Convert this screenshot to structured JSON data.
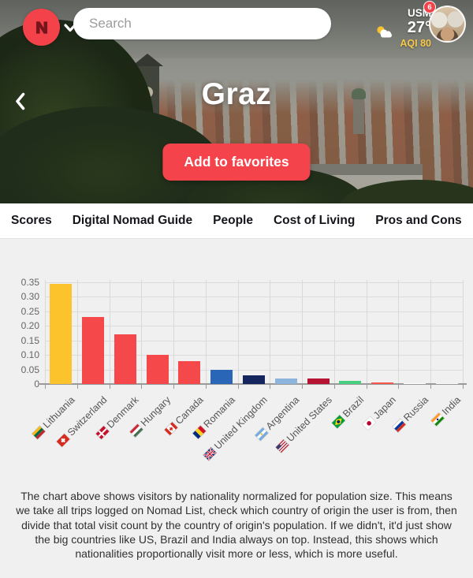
{
  "header": {
    "search_placeholder": "Search",
    "user_label": "USM",
    "notification_count": "6",
    "temperature": "27°",
    "aqi_label": "AQI",
    "aqi_value": "80",
    "colors": {
      "brand_red": "#f3424a",
      "aqi_yellow": "#f7c94b"
    }
  },
  "hero": {
    "title": "Graz",
    "favorite_button_label": "Add to favorites"
  },
  "tabs": [
    "Scores",
    "Digital Nomad Guide",
    "People",
    "Cost of Living",
    "Pros and Cons"
  ],
  "chart_data": {
    "type": "bar",
    "categories": [
      "Lithuania",
      "Switzerland",
      "Denmark",
      "Hungary",
      "Canada",
      "Romania",
      "United Kingdom",
      "Argentina",
      "United States",
      "Brazil",
      "Japan",
      "Russia",
      "India"
    ],
    "values": [
      0.345,
      0.23,
      0.17,
      0.1,
      0.08,
      0.048,
      0.03,
      0.02,
      0.018,
      0.012,
      0.005,
      0.001,
      0.001
    ],
    "bar_colors": [
      "#fcc32c",
      "#f4484b",
      "#f4484b",
      "#f4484b",
      "#f4484b",
      "#2a66b8",
      "#14245c",
      "#8cb4dc",
      "#b51331",
      "#45cf7f",
      "#f4574c",
      "#ffffff",
      "#fafafa"
    ],
    "flags": [
      {
        "type": "h",
        "colors": [
          "#FDB913",
          "#006A44",
          "#C1272D"
        ]
      },
      {
        "type": "ch"
      },
      {
        "type": "dk"
      },
      {
        "type": "h",
        "colors": [
          "#CE2939",
          "#FFFFFF",
          "#477050"
        ]
      },
      {
        "type": "ca"
      },
      {
        "type": "v",
        "colors": [
          "#002B7F",
          "#FCD116",
          "#CE1126"
        ]
      },
      {
        "type": "uk"
      },
      {
        "type": "h",
        "colors": [
          "#74ACDF",
          "#FFFFFF",
          "#74ACDF"
        ],
        "dot": "#F6B40E"
      },
      {
        "type": "us"
      },
      {
        "type": "br"
      },
      {
        "type": "jp"
      },
      {
        "type": "h",
        "colors": [
          "#FFFFFF",
          "#0039A6",
          "#D52B1E"
        ]
      },
      {
        "type": "h",
        "colors": [
          "#FF9933",
          "#FFFFFF",
          "#138808"
        ],
        "dot": "#000088"
      }
    ],
    "title": "",
    "xlabel": "",
    "ylabel": "",
    "ylim": [
      0,
      0.35
    ],
    "ytick_labels": [
      "0",
      "0.05",
      "0.10",
      "0.15",
      "0.20",
      "0.25",
      "0.30",
      "0.35"
    ],
    "grid": true,
    "legend": "none"
  },
  "description": "The chart above shows visitors by nationality normalized for population size. This means we take all trips logged on Nomad List, check which country of origin the user is from, then divide that total visit count by the country of origin's population. If we didn't, it'd just show the big countries like US, Brazil and India always on top. Instead, this shows which nationalities proportionally visit more or less, which is more useful."
}
